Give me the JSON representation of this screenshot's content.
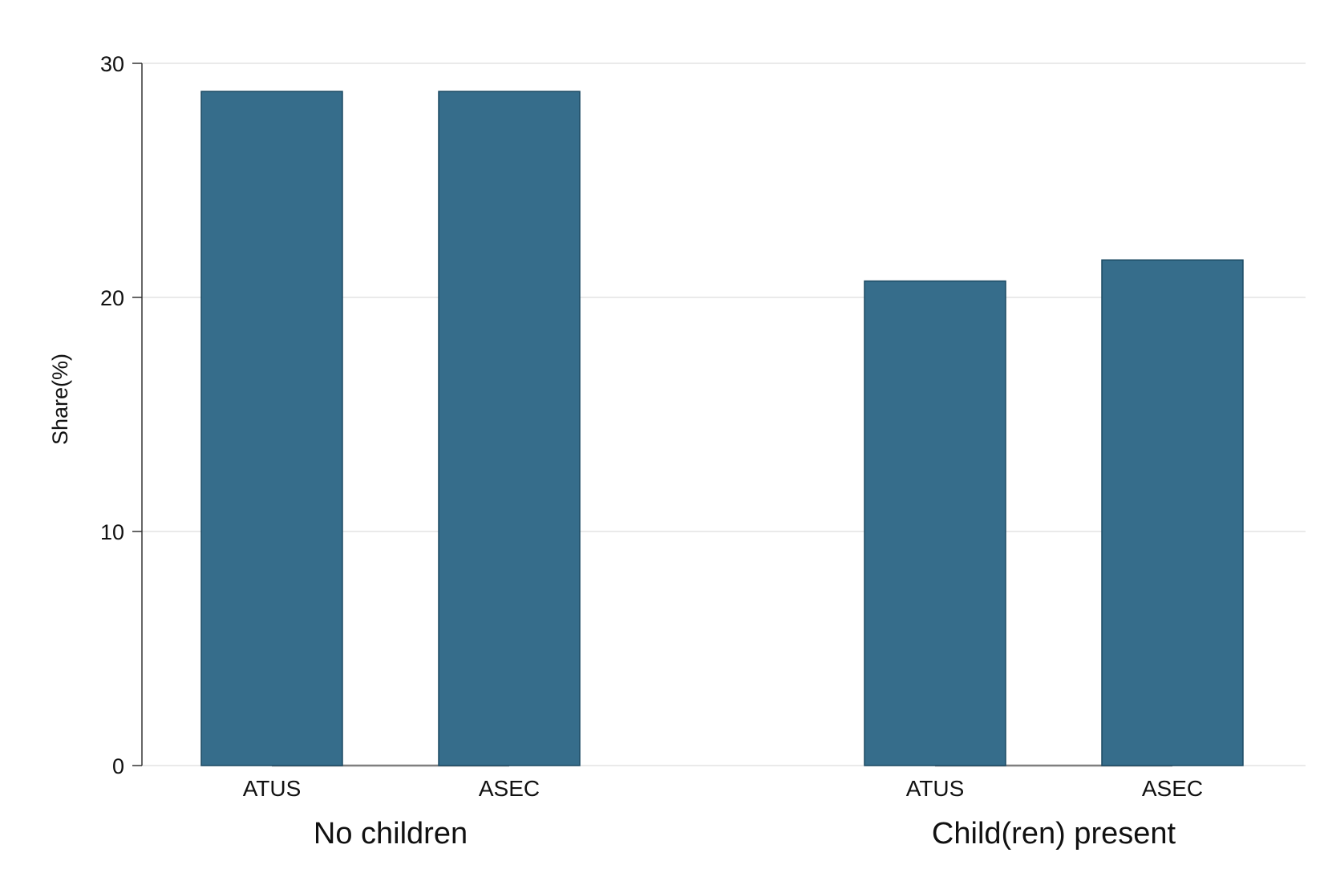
{
  "chart_data": {
    "type": "bar",
    "groups": [
      {
        "label": "No children",
        "categories": [
          "ATUS",
          "ASEC"
        ],
        "values": [
          28.8,
          28.8
        ]
      },
      {
        "label": "Child(ren) present",
        "categories": [
          "ATUS",
          "ASEC"
        ],
        "values": [
          20.7,
          21.6
        ]
      }
    ],
    "ylabel": "Share(%)",
    "xlabel": "",
    "title": "",
    "ylim": [
      0,
      30
    ],
    "yticks": [
      0,
      10,
      20,
      30
    ],
    "grid": true,
    "legend": "none",
    "colors": {
      "bar_fill": "#366d8b",
      "bar_stroke": "#1c4a63",
      "grid": "#e3e3e3",
      "axis": "#333333",
      "baseline": "#7f7f7f"
    }
  }
}
